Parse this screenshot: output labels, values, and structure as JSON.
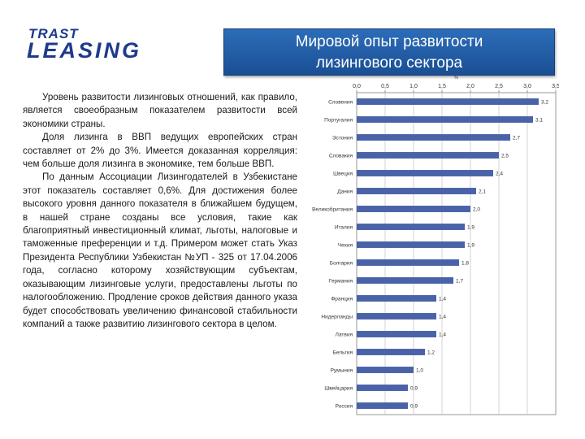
{
  "logo": {
    "line1": "TRAST",
    "line2": "LEASING"
  },
  "slide": {
    "title_line1": "Мировой опыт развитости",
    "title_line2": "лизингового сектора"
  },
  "body": {
    "paragraphs": [
      "Уровень развитости лизинговых отношений, как правило, является своеобразным показателем развитости всей экономики страны.",
      "Доля лизинга в ВВП ведущих европейских стран составляет от 2% до 3%. Имеется доказанная корреляция: чем больше доля лизинга в экономике, тем больше ВВП.",
      "По данным Ассоциации Лизингодателей в Узбекистане этот показатель составляет 0,6%. Для достижения более высокого уровня данного показателя в ближайшем будущем, в нашей стране созданы все условия, такие как благоприятный инвестиционный климат, льготы, налоговые и таможенные преференции и т.д. Примером может стать Указ Президента Республики Узбекистан №УП - 325 от 17.04.2006 года, согласно которому хозяйствующим субъектам, оказывающим лизинговые услуги, предоставлены льготы по налогообложению. Продление сроков действия данного указа будет способствовать увеличению финансовой стабильности компаний а также развитию лизингового сектора в целом."
    ]
  },
  "chart_data": {
    "type": "bar",
    "orientation": "horizontal",
    "unit_label": "%",
    "xlim": [
      0,
      3.5
    ],
    "ticks": [
      0,
      0.5,
      1,
      1.5,
      2,
      2.5,
      3,
      3.5
    ],
    "tick_labels": [
      "0,0",
      "0,5",
      "1,0",
      "1,5",
      "2,0",
      "2,5",
      "3,0",
      "3,5"
    ],
    "grid": true,
    "bar_color": "#4a62a8",
    "categories": [
      "Словения",
      "Португалия",
      "Эстония",
      "Словакия",
      "Швеция",
      "Дания",
      "Великобритания",
      "Италия",
      "Чехия",
      "Болгария",
      "Германия",
      "Франция",
      "Нидерланды",
      "Латвия",
      "Бельгия",
      "Румыния",
      "Швейцария",
      "Россия"
    ],
    "values": [
      3.2,
      3.1,
      2.7,
      2.5,
      2.4,
      2.1,
      2.0,
      1.9,
      1.9,
      1.8,
      1.7,
      1.4,
      1.4,
      1.4,
      1.2,
      1.0,
      0.9,
      0.9
    ],
    "value_labels": [
      "3,2",
      "3,1",
      "2,7",
      "2,5",
      "2,4",
      "2,1",
      "2,0",
      "1,9",
      "1,9",
      "1,8",
      "1,7",
      "1,4",
      "1,4",
      "1,4",
      "1,2",
      "1,0",
      "0,9",
      "0,9"
    ]
  }
}
